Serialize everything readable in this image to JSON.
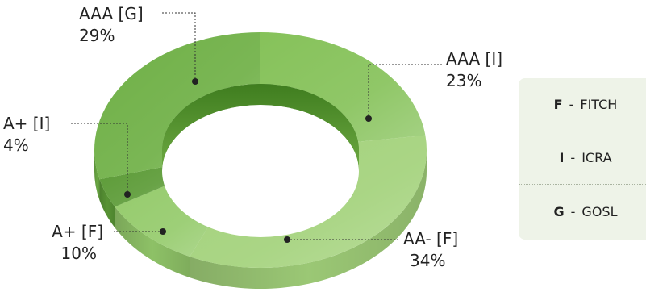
{
  "chart_data": {
    "type": "pie",
    "slices": [
      {
        "label": "AAA [I]",
        "value": 23,
        "value_label": "23%",
        "color": "#86c25a"
      },
      {
        "label": "AA- [F]",
        "value": 34,
        "value_label": "34%",
        "color": "#a3d27b"
      },
      {
        "label": "A+ [F]",
        "value": 10,
        "value_label": "10%",
        "color": "#95cb6c"
      },
      {
        "label": "A+ [I]",
        "value": 4,
        "value_label": "4%",
        "color": "#5c9b37"
      },
      {
        "label": "AAA [G]",
        "value": 29,
        "value_label": "29%",
        "color": "#6fb046"
      }
    ]
  },
  "legend": {
    "items": [
      {
        "code": "F",
        "sep": "-",
        "name": "FITCH"
      },
      {
        "code": "I",
        "sep": "-",
        "name": "ICRA"
      },
      {
        "code": "G",
        "sep": "-",
        "name": "GOSL"
      }
    ]
  }
}
